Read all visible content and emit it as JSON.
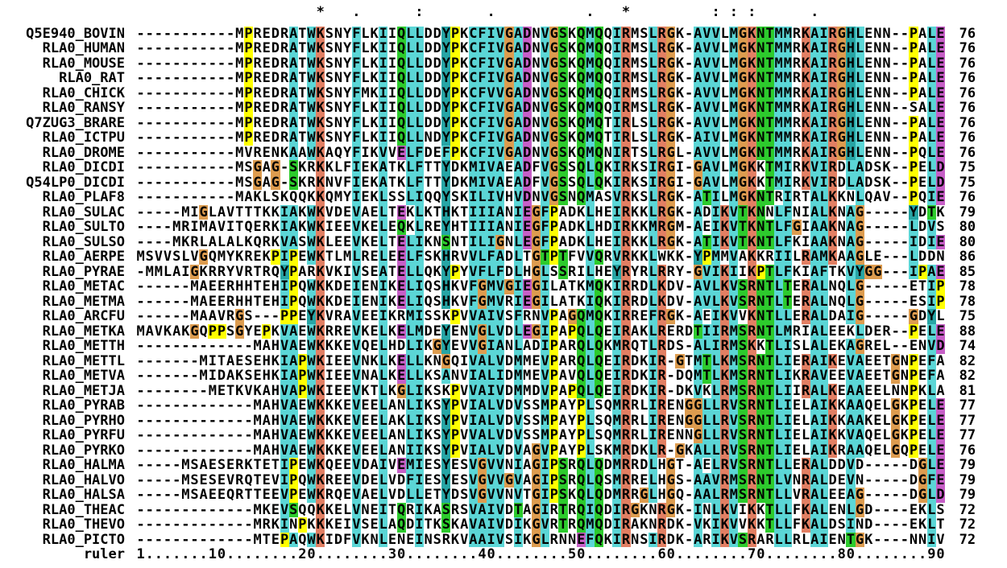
{
  "conservation_line": "                    *   .      :       .          .   *         : : :      .              ",
  "ruler": {
    "label": "ruler",
    "line": "1.......10........20........30........40........50........60........70........80........90"
  },
  "palette": {
    "background": "#FFFFFF",
    "text": "#000000",
    "blue": "#5BD6D6",
    "red": "#E27F63",
    "green": "#2DCB2D",
    "orange": "#DD9C4F",
    "yellow": "#FFFF00",
    "magenta": "#C75FC7",
    "cyan": "#27A5A5",
    "pink": "#E08080"
  },
  "color_scheme": "clustalx",
  "rows": [
    {
      "name": "Q5E940_BOVIN",
      "seq": "-----------MPREDRATWKSNYFLKIIQLLDDYPKCFIVGADNVGSKQMQQIRMSLRGK-AVVLMGKNTMMRKAIRGHLENN--PALE",
      "end": "76"
    },
    {
      "name": "RLA0_HUMAN",
      "seq": "-----------MPREDRATWKSNYFLKIIQLLDDYPKCFIVGADNVGSKQMQQIRMSLRGK-AVVLMGKNTMMRKAIRGHLENN--PALE",
      "end": "76"
    },
    {
      "name": "RLA0_MOUSE",
      "seq": "-----------MPREDRATWKSNYFLKIIQLLDDYPKCFIVGADNVGSKQMQQIRMSLRGK-AVVLMGKNTMMRKAIRGHLENN--PALE",
      "end": "76"
    },
    {
      "name": "RLA0_RAT",
      "seq": "-----------MPREDRATWKSNYFLKIIQLLDDYPKCFIVGADNVGSKQMQQIRMSLRGK-AVVLMGKNTMMRKAIRGHLENN--PALE",
      "end": "76"
    },
    {
      "name": "RLA0_CHICK",
      "seq": "-----------MPREDRATWKSNYFMKIIQLLDDYPKCFVVGADNVGSKQMQQIRMSLRGK-AVVLMGKNTMMRKAIRGHLENN--PALE",
      "end": "76"
    },
    {
      "name": "RLA0_RANSY",
      "seq": "-----------MPREDRATWKSNYFLKIIQLLDDYPKCFIVGADNVGSKQMQQIRMSLRGK-AVVLMGKNTMMRKAIRGHLENN--SALE",
      "end": "76"
    },
    {
      "name": "Q7ZUG3_BRARE",
      "seq": "-----------MPREDRATWKSNYFLKIIQLLDDYPKCFIVGADNVGSKQMQTIRLSLRGK-AVVLMGKNTMMRKAIRGHLENN--PALE",
      "end": "76"
    },
    {
      "name": "RLA0_ICTPU",
      "seq": "-----------MPREDRATWKSNYFLKIIQLLNDYPKCFIVGADNVGSKQMQTIRLSLRGK-AIVLMGKNTMMRKAIRGHLENN--PALE",
      "end": "76"
    },
    {
      "name": "RLA0_DROME",
      "seq": "-----------MVRENKAAWKAQYFIKVVELFDEFPKCFIVGADNVGSKQMQNIRTSLRGL-AVVLMGKNTMMRKAIRGHLENN--PQLE",
      "end": "76"
    },
    {
      "name": "RLA0_DICDI",
      "seq": "-----------MSGAG-SKRKKLFIEKATKLFTTYDKMIVAEADFVGSSQLQKIRKSIRGI-GAVLMGKKTMIRKVIRDLADSK--PELD",
      "end": "75"
    },
    {
      "name": "Q54LP0_DICDI",
      "seq": "-----------MSGAG-SKRKNVFIEKATKLFTTYDKMIVAEADFVGSSQLQKIRKSIRGI-GAVLMGKKTMIRKVIRDLADSK--PELD",
      "end": "75"
    },
    {
      "name": "RLA0_PLAF8",
      "seq": "-----------MAKLSKQQKKQMYIEKLSSLIQQYSKILIVHVDNVGSNQMASVRKSLRGK-ATILMGKNTRIRTALKKNLQAV--PQIE",
      "end": "76"
    },
    {
      "name": "RLA0_SULAC",
      "seq": "-----MIGLAVTTTKKIAKWKVDEVAELTEKLKTHKTIIIANIEGFPADKLHEIRKKLRGK-ADIKVTKNNLFNIALKNAG-----YDTK",
      "end": "79"
    },
    {
      "name": "RLA0_SULTO",
      "seq": "----MRIMAVITQERKIAKWKIEEVKELEQKLREYHTIIIANIEGFPADKLHDIRKKMRGM-AEIKVTKNTLFGIAAKNAG-----LDVS",
      "end": "80"
    },
    {
      "name": "RLA0_SULSO",
      "seq": "----MKRLALALKQRKVASWKLEEVKELTELIKNSNTILIGNLEGFPADKLHEIRKKLRGK-ATIKVTKNTLFKIAAKNAG-----IDIE",
      "end": "80"
    },
    {
      "name": "RLA0_AERPE",
      "seq": "MSVVSLVGQMYKREKPIPEWKTLMLRELEELFSKHRVVLFADLTGTPTFVVQRVRKKLWKK-YPMMVAKKRIILRAMKAAGLE---LDDN",
      "end": "86"
    },
    {
      "name": "RLA0_PYRAE",
      "seq": "-MMLAIGKRRYVRTRQYPARKVKIVSEATELLQKYPYVFLFDLHGLSSRILHEYRYRLRRY-GVIKIIKPTLFKIAFTKVYGG---IPAE",
      "end": "85"
    },
    {
      "name": "RLA0_METAC",
      "seq": "------MAEERHHTEHIPQWKKDEIENIKELIQSHKVFGMVGIEGILATKMQKIRRDLKDV-AVLKVSRNTLTERALNQLG-----ETIP",
      "end": "78"
    },
    {
      "name": "RLA0_METMA",
      "seq": "------MAEERHHTEHIPQWKKDEIENIKELIQSHKVFGMVRIEGILATKIQKIRRDLKDV-AVLKVSRNTLTERALNQLG-----ESIP",
      "end": "78"
    },
    {
      "name": "RLA0_ARCFU",
      "seq": "------MAAVRGS---PPEYKVRAVEEIKRMISSKPVVAIVSFRNVPAGQMQKIRREFRGK-AEIKVVKNTLLERALDAIG-----GDYL",
      "end": "75"
    },
    {
      "name": "RLA0_METKA",
      "seq": "MAVKAKGQPPSGYEPKVAEWKRREVKELKELMDEYENVGLVDLEGIPAPQLQEIRAKLRERDTIIRMSRNTLMRIALEEKLDER--PELE",
      "end": "88"
    },
    {
      "name": "RLA0_METTH",
      "seq": "-------------MAHVAEWKKKEVQELHDLIKGYEVVGIANLADIPARQLQKMRQTLRDS-ALIRMSKKTLISLALEKAGREL--ENVD",
      "end": "74"
    },
    {
      "name": "RLA0_METTL",
      "seq": "-------MITAESEHKIAPWKIEEVNKLKELLKNGQIVALVDMMEVPARQLQEIRDKIR-GTMTLKMSRNTLIERAIKEVAEETGNPEFA",
      "end": "82"
    },
    {
      "name": "RLA0_METVA",
      "seq": "-------MIDAKSEHKIAPWKIEEVNALKELLKSANVIALIDMMEVPAVQLQEIRDKIR-DQMTLKMSRNTLIKRAVEEVAEETGNPEFA",
      "end": "82"
    },
    {
      "name": "RLA0_METJA",
      "seq": "--------METKVKAHVAPWKIEEVKTLKGLIKSKPVVAIVDMMDVPAPQLQEIRDKIR-DKVKLRMSRNTLIIRALKEAAEELNNPKLA",
      "end": "81"
    },
    {
      "name": "RLA0_PYRAB",
      "seq": "-------------MAHVAEWKKKEVEELANLIKSYPVIALVDVSSMPAYPLSQMRRLIRENGGLLRVSRNTLIELAIKKAAQELGKPELE",
      "end": "77"
    },
    {
      "name": "RLA0_PYRHO",
      "seq": "-------------MAHVAEWKKKEVEELAKLIKSYPVIALVDVSSMPAYPLSQMRRLIRENGGLLRVSRNTLIELAIKKAAKELGKPELE",
      "end": "77"
    },
    {
      "name": "RLA0_PYRFU",
      "seq": "-------------MAHVAEWKKKEVEELANLIKSYPVVALVDVSSMPAYPLSQMRRLIRENNGLLRVSRNTLIELAIKKVAQELGKPELE",
      "end": "77"
    },
    {
      "name": "RLA0_PYRKO",
      "seq": "-------------MAHVAEWKKKEVEELANIIKSYPVIALVDVAGVPAYPLSKMRDKLR-GKALLRVSRNTLIELAIKRAAQELGQPELE",
      "end": "76"
    },
    {
      "name": "RLA0_HALMA",
      "seq": "-----MSAESERKTETIPEWKQEEVDAIVEMIESYESVGVVNIAGIPSRQLQDMRRDLHGT-AELRVSRNTLLERALDDVD-----DGLE",
      "end": "79"
    },
    {
      "name": "RLA0_HALVO",
      "seq": "-----MSESEVRQTEVIPQWKREEVDELVDFIESYESVGVVGVAGIPSRQLQSMRRELHGS-AAVRMSRNTLVNRALDEVN-----DGFE",
      "end": "79"
    },
    {
      "name": "RLA0_HALSA",
      "seq": "-----MSAEEQRTTEEVPEWKRQEVAELVDLLETYDSVGVVNVTGIPSKQLQDMRRGLHGQ-AALRMSRNTLLVRALEEAG-----DGLD",
      "end": "79"
    },
    {
      "name": "RLA0_THEAC",
      "seq": "-------------MKEVSQQKKELVNEITQRIKASRSVAIVDTAGIRTRQIQDIRGKNRGK-INLKVIKKTLLFKALENLGD----EKLS",
      "end": "72"
    },
    {
      "name": "RLA0_THEVO",
      "seq": "-------------MRKINPKKKEIVSELAQDITKSKAVAIVDIKGVRTRQMQDIRAKNRDK-VKIKVVKKTLLFKALDSIND----EKLT",
      "end": "72"
    },
    {
      "name": "RLA0_PICTO",
      "seq": "-------------MTEPAQWKIDFVKNLENEINSRKVAAIVSIKGLRNNEFQKIRNSIRDK-ARIKVSRARLLRLAIENTGK----NNIV",
      "end": "72"
    }
  ]
}
